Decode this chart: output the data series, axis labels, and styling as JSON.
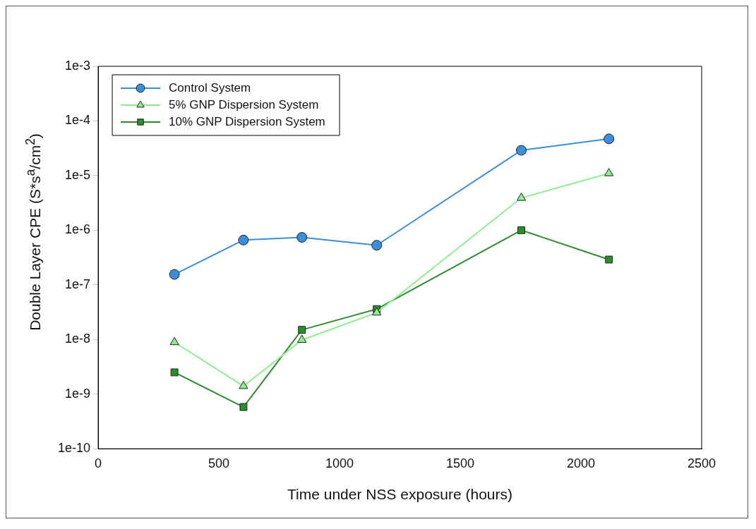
{
  "chart_data": {
    "type": "line",
    "xlabel": "Time under NSS exposure (hours)",
    "ylabel": "Double Layer CPE (S*s$^{a}$/cm$^{2}$)",
    "x": [
      316,
      602,
      844,
      1154,
      1753,
      2116
    ],
    "series": [
      {
        "name": "Control System",
        "color": "#3b8fd8",
        "marker": "circle",
        "values": [
          1.55e-07,
          6.6e-07,
          7.4e-07,
          5.3e-07,
          2.9e-05,
          4.7e-05
        ]
      },
      {
        "name": "5% GNP Dispersion System",
        "color": "#90ee90",
        "marker": "triangle",
        "values": [
          8.9e-09,
          1.4e-09,
          9.8e-09,
          3.1e-08,
          3.9e-06,
          1.1e-05
        ]
      },
      {
        "name": "10% GNP Dispersion System",
        "color": "#2e8b2e",
        "marker": "square",
        "values": [
          2.5e-09,
          5.8e-10,
          1.5e-08,
          3.6e-08,
          1e-06,
          2.9e-07
        ]
      }
    ],
    "log": "y",
    "xlim": [
      0,
      2500
    ],
    "xticks": [
      0,
      500,
      1000,
      1500,
      2000,
      2500
    ],
    "ylim": [
      1e-10,
      0.001
    ],
    "yticks": [
      {
        "value": 1e-10,
        "label": "1e-10"
      },
      {
        "value": 1e-09,
        "label": "1e-9"
      },
      {
        "value": 1e-08,
        "label": "1e-8"
      },
      {
        "value": 1e-07,
        "label": "1e-7"
      },
      {
        "value": 1e-06,
        "label": "1e-6"
      },
      {
        "value": 1e-05,
        "label": "1e-5"
      },
      {
        "value": 0.0001,
        "label": "1e-4"
      },
      {
        "value": 0.001,
        "label": "1e-3"
      }
    ],
    "grid": false,
    "legend": "top left",
    "line_style": "solid"
  }
}
